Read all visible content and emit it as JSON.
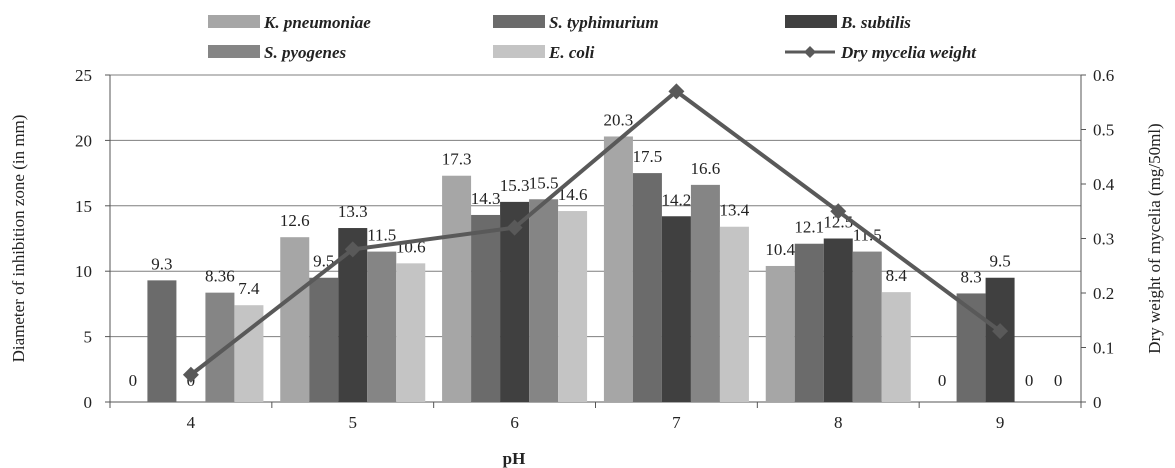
{
  "chart_data": {
    "type": "bar",
    "title": "",
    "xlabel": "pH",
    "ylabel": "Diameter of inhibition zone (in mm)",
    "y2label": "Dry weight of mycelia  (mg/50ml)",
    "categories": [
      "4",
      "5",
      "6",
      "7",
      "8",
      "9"
    ],
    "ylim": [
      0,
      25
    ],
    "yticks": [
      "0",
      "5",
      "10",
      "15",
      "20",
      "25"
    ],
    "y2lim": [
      0,
      0.6
    ],
    "y2ticks": [
      "0",
      "0.1",
      "0.2",
      "0.3",
      "0.4",
      "0.5",
      "0.6"
    ],
    "grid": true,
    "legend_position": "top",
    "series": [
      {
        "name": "K. pneumoniae",
        "color": "#a6a6a6",
        "values": [
          0,
          12.6,
          17.3,
          20.3,
          10.4,
          0
        ],
        "labels": [
          "0",
          "12.6",
          "17.3",
          "20.3",
          "10.4",
          "0"
        ]
      },
      {
        "name": "S. typhimurium",
        "color": "#6b6b6b",
        "values": [
          9.3,
          9.5,
          14.3,
          17.5,
          12.1,
          8.3
        ],
        "labels": [
          "9.3",
          "9.5",
          "14.3",
          "17.5",
          "12.1",
          "8.3"
        ]
      },
      {
        "name": "B. subtilis",
        "color": "#404040",
        "values": [
          0,
          13.3,
          15.3,
          14.2,
          12.5,
          9.5
        ],
        "labels": [
          "0",
          "13.3",
          "15.3",
          "14.2",
          "12.5",
          "9.5"
        ]
      },
      {
        "name": "S. pyogenes",
        "color": "#858585",
        "values": [
          8.36,
          11.5,
          15.5,
          16.6,
          11.5,
          0
        ],
        "labels": [
          "8.36",
          "11.5",
          "15.5",
          "16.6",
          "11.5",
          "0"
        ]
      },
      {
        "name": "E. coli",
        "color": "#c4c4c4",
        "values": [
          7.4,
          10.6,
          14.6,
          13.4,
          8.4,
          0
        ],
        "labels": [
          "7.4",
          "10.6",
          "14.6",
          "13.4",
          "8.4",
          "0"
        ]
      }
    ],
    "line_series": {
      "name": "Dry mycelia weight",
      "color": "#595959",
      "axis": "secondary",
      "values": [
        0.05,
        0.28,
        0.32,
        0.57,
        0.35,
        0.13
      ]
    }
  }
}
